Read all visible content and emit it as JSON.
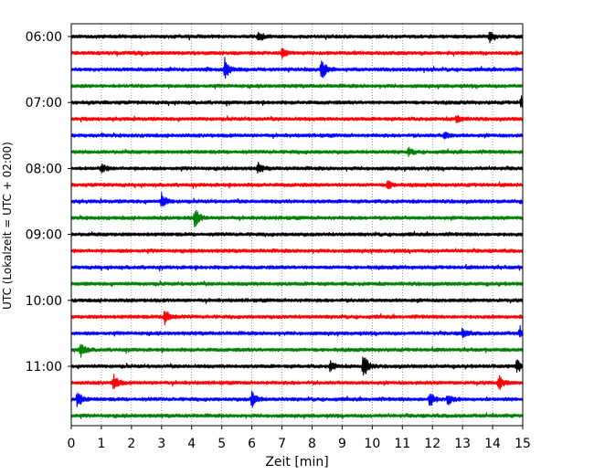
{
  "chart_data": {
    "type": "line",
    "title": "",
    "xlabel": "Zeit  [min]",
    "ylabel": "UTC (Lokalzeit = UTC + 02:00)",
    "xlim": [
      0,
      15
    ],
    "x_ticks": [
      0,
      1,
      2,
      3,
      4,
      5,
      6,
      7,
      8,
      9,
      10,
      11,
      12,
      13,
      14,
      15
    ],
    "x_tick_labels": [
      "0",
      "1",
      "2",
      "3",
      "4",
      "5",
      "6",
      "7",
      "8",
      "9",
      "10",
      "11",
      "12",
      "13",
      "14",
      "15"
    ],
    "grid": "vertical dotted at each minute",
    "legend": "none",
    "colors_cycle": [
      "#000000",
      "#ff0000",
      "#0000ff",
      "#008000"
    ],
    "row_labels": [
      {
        "row": 0,
        "text": "06:00"
      },
      {
        "row": 4,
        "text": "07:00"
      },
      {
        "row": 8,
        "text": "08:00"
      },
      {
        "row": 12,
        "text": "09:00"
      },
      {
        "row": 16,
        "text": "10:00"
      },
      {
        "row": 20,
        "text": "11:00"
      }
    ],
    "rows": [
      {
        "start": "06:00",
        "color": "#000000",
        "events": [
          {
            "minute": 6.2,
            "amp": 0.35
          },
          {
            "minute": 13.9,
            "amp": 0.35
          }
        ]
      },
      {
        "start": "06:15",
        "color": "#ff0000",
        "events": [
          {
            "minute": 7.0,
            "amp": 0.3
          }
        ]
      },
      {
        "start": "06:30",
        "color": "#0000ff",
        "events": [
          {
            "minute": 5.1,
            "amp": 0.7
          },
          {
            "minute": 8.3,
            "amp": 0.85
          }
        ]
      },
      {
        "start": "06:45",
        "color": "#008000",
        "events": []
      },
      {
        "start": "07:00",
        "color": "#000000",
        "events": [
          {
            "minute": 14.95,
            "amp": 0.45
          }
        ]
      },
      {
        "start": "07:15",
        "color": "#ff0000",
        "events": [
          {
            "minute": 12.8,
            "amp": 0.3
          }
        ]
      },
      {
        "start": "07:30",
        "color": "#0000ff",
        "events": [
          {
            "minute": 12.4,
            "amp": 0.25
          }
        ]
      },
      {
        "start": "07:45",
        "color": "#008000",
        "events": [
          {
            "minute": 11.2,
            "amp": 0.25
          }
        ]
      },
      {
        "start": "08:00",
        "color": "#000000",
        "events": [
          {
            "minute": 1.0,
            "amp": 0.3
          },
          {
            "minute": 6.2,
            "amp": 0.35
          }
        ]
      },
      {
        "start": "08:15",
        "color": "#ff0000",
        "events": [
          {
            "minute": 10.5,
            "amp": 0.35
          }
        ]
      },
      {
        "start": "08:30",
        "color": "#0000ff",
        "events": [
          {
            "minute": 3.0,
            "amp": 0.5
          }
        ]
      },
      {
        "start": "08:45",
        "color": "#008000",
        "events": [
          {
            "minute": 4.1,
            "amp": 0.75
          }
        ]
      },
      {
        "start": "09:00",
        "color": "#000000",
        "events": []
      },
      {
        "start": "09:15",
        "color": "#ff0000",
        "events": []
      },
      {
        "start": "09:30",
        "color": "#0000ff",
        "events": []
      },
      {
        "start": "09:45",
        "color": "#008000",
        "events": []
      },
      {
        "start": "10:00",
        "color": "#000000",
        "events": []
      },
      {
        "start": "10:15",
        "color": "#ff0000",
        "events": [
          {
            "minute": 3.1,
            "amp": 0.65
          }
        ]
      },
      {
        "start": "10:30",
        "color": "#0000ff",
        "events": [
          {
            "minute": 13.0,
            "amp": 0.35
          },
          {
            "minute": 14.9,
            "amp": 0.35
          }
        ]
      },
      {
        "start": "10:45",
        "color": "#008000",
        "events": [
          {
            "minute": 0.3,
            "amp": 0.55
          }
        ]
      },
      {
        "start": "11:00",
        "color": "#000000",
        "events": [
          {
            "minute": 8.6,
            "amp": 0.35
          },
          {
            "minute": 9.7,
            "amp": 0.95
          },
          {
            "minute": 14.8,
            "amp": 0.45
          }
        ]
      },
      {
        "start": "11:15",
        "color": "#ff0000",
        "events": [
          {
            "minute": 1.4,
            "amp": 0.6
          },
          {
            "minute": 14.2,
            "amp": 0.55
          }
        ]
      },
      {
        "start": "11:30",
        "color": "#0000ff",
        "events": [
          {
            "minute": 0.2,
            "amp": 0.6
          },
          {
            "minute": 6.0,
            "amp": 0.6
          },
          {
            "minute": 11.9,
            "amp": 0.55
          },
          {
            "minute": 12.5,
            "amp": 0.4
          }
        ]
      },
      {
        "start": "11:45",
        "color": "#008000",
        "events": []
      }
    ]
  }
}
